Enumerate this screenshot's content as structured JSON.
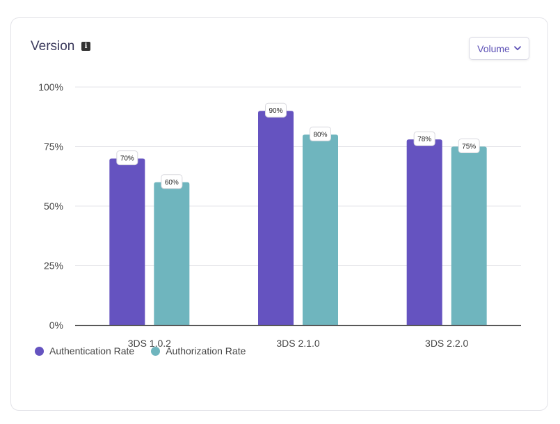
{
  "card": {
    "title": "Version",
    "info_icon": "info-icon",
    "dropdown": {
      "label": "Volume",
      "icon": "chevron-down-icon"
    }
  },
  "colors": {
    "authentication": "#6553c0",
    "authorization": "#6fb5be",
    "grid": "#e6e6ea",
    "axis": "#555555",
    "tick_text": "#444444"
  },
  "chart_data": {
    "type": "bar",
    "categories": [
      "3DS 1.0.2",
      "3DS 2.1.0",
      "3DS 2.2.0"
    ],
    "series": [
      {
        "name": "Authentication Rate",
        "values": [
          70,
          90,
          78
        ],
        "labels": [
          "70%",
          "90%",
          "78%"
        ]
      },
      {
        "name": "Authorization Rate",
        "values": [
          60,
          80,
          75
        ],
        "labels": [
          "60%",
          "80%",
          "75%"
        ]
      }
    ],
    "yticks": [
      {
        "value": 0,
        "label": "0%"
      },
      {
        "value": 25,
        "label": "25%"
      },
      {
        "value": 50,
        "label": "50%"
      },
      {
        "value": 75,
        "label": "75%"
      },
      {
        "value": 100,
        "label": "100%"
      }
    ],
    "ylim": [
      0,
      100
    ],
    "grid": true,
    "legend_position": "bottom-left"
  }
}
